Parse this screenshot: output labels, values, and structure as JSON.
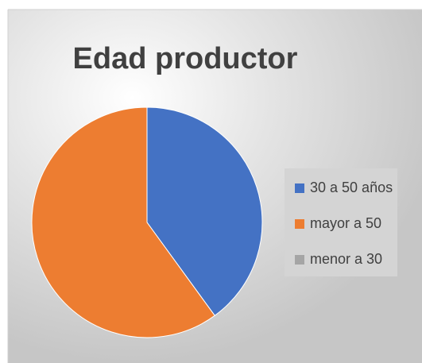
{
  "chart_data": {
    "type": "pie",
    "title": "Edad productor",
    "categories": [
      "30 a 50 años",
      "mayor a 50",
      "menor a 30"
    ],
    "values": [
      40,
      60,
      0
    ],
    "colors": [
      "#4472c4",
      "#ed7d31",
      "#a5a5a5"
    ],
    "legend": "right"
  }
}
